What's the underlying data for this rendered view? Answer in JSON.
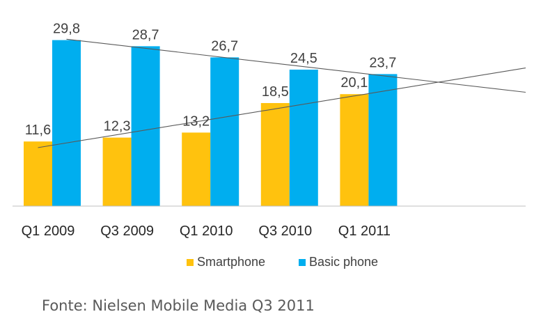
{
  "chart_data": {
    "type": "bar",
    "categories": [
      "Q1 2009",
      "Q3 2009",
      "Q1 2010",
      "Q3 2010",
      "Q1 2011"
    ],
    "series": [
      {
        "name": "Smartphone",
        "values": [
          11.6,
          12.3,
          13.2,
          18.5,
          20.1
        ],
        "labels": [
          "11,6",
          "12,3",
          "13,2",
          "18,5",
          "20,1"
        ],
        "color": "#FFC20E"
      },
      {
        "name": "Basic phone",
        "values": [
          29.8,
          28.7,
          26.7,
          24.5,
          23.7
        ],
        "labels": [
          "29,8",
          "28,7",
          "26,7",
          "24,5",
          "23,7"
        ],
        "color": "#00AEEF"
      }
    ],
    "trendlines": [
      {
        "series": "Smartphone",
        "type": "linear",
        "color": "#595959"
      },
      {
        "series": "Basic phone",
        "type": "linear",
        "color": "#595959"
      }
    ],
    "ylim": [
      0,
      33
    ],
    "grid": false,
    "legend_position": "bottom",
    "source_note": "Fonte: Nielsen Mobile Media Q3 2011"
  }
}
